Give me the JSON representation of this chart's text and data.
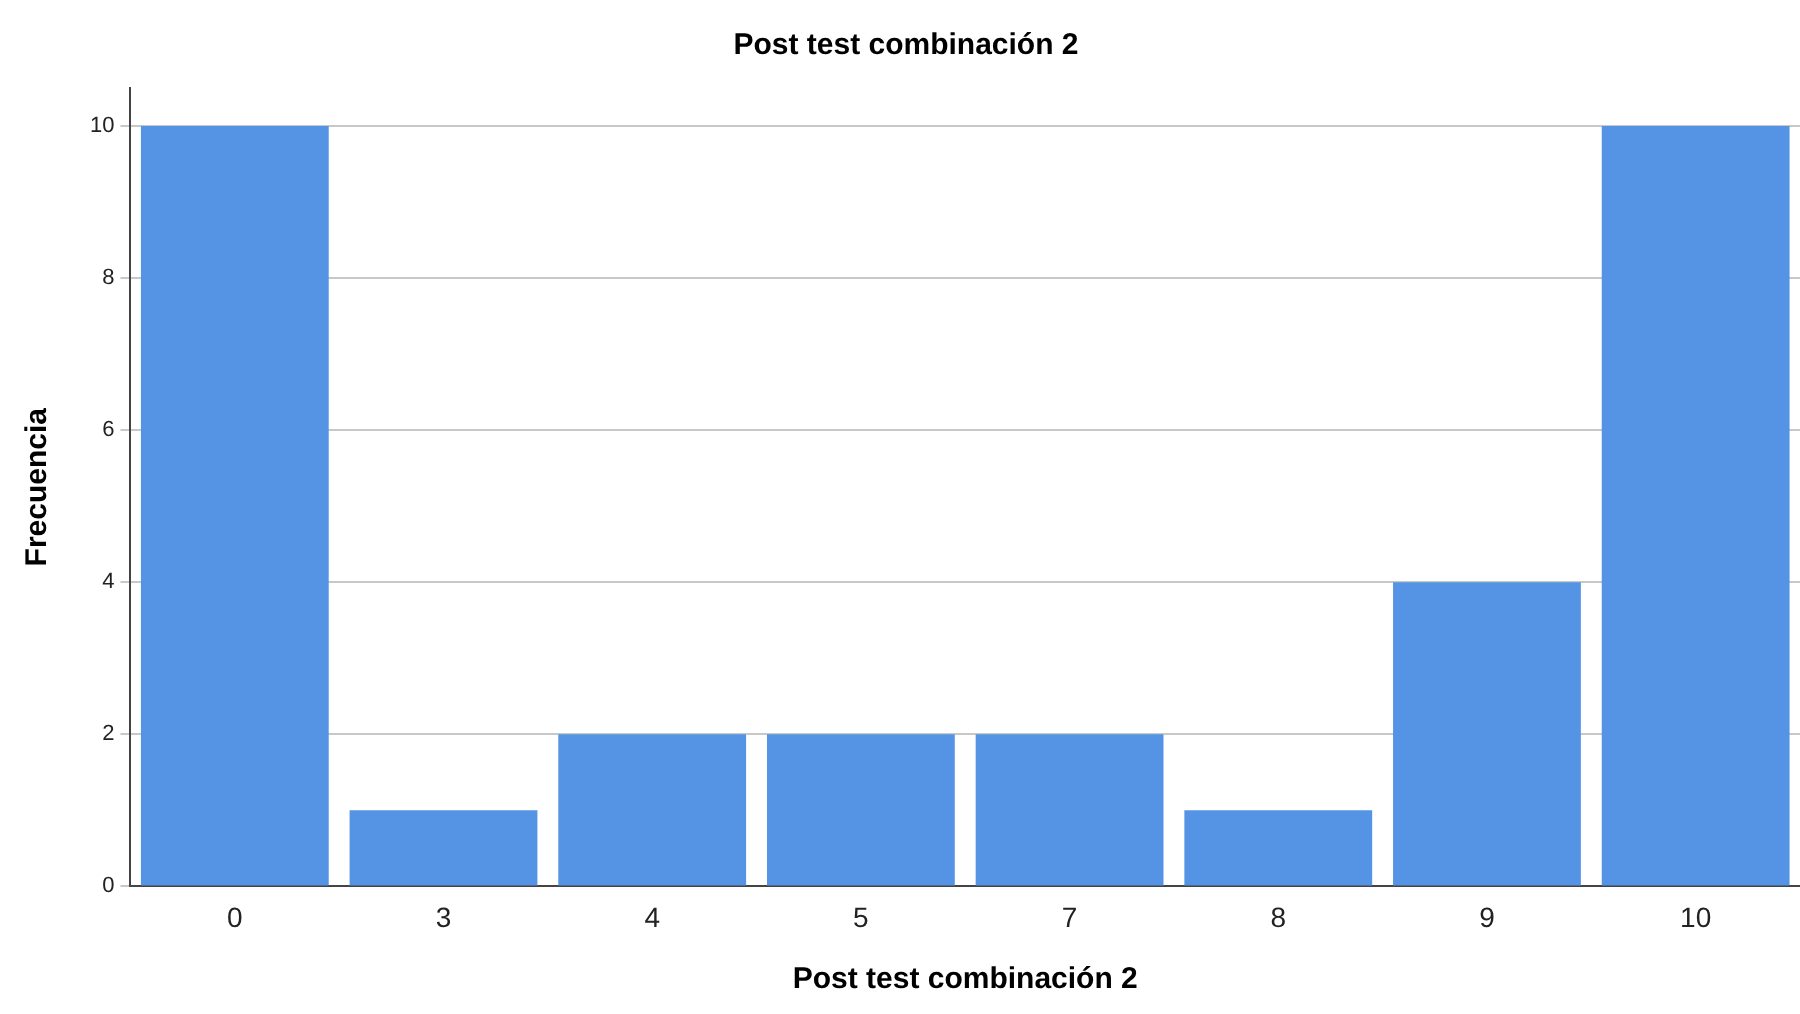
{
  "chart_data": {
    "type": "bar",
    "title": "Post test combinación 2",
    "xlabel": "Post test combinación 2",
    "ylabel": "Frecuencia",
    "categories": [
      "0",
      "3",
      "4",
      "5",
      "7",
      "8",
      "9",
      "10"
    ],
    "values": [
      10,
      1,
      2,
      2,
      2,
      1,
      4,
      10
    ],
    "color": "#5594e4",
    "ylim": [
      0,
      10.5
    ],
    "yticks": [
      0,
      2,
      4,
      6,
      8,
      10
    ],
    "grid": "y",
    "legend": false
  }
}
